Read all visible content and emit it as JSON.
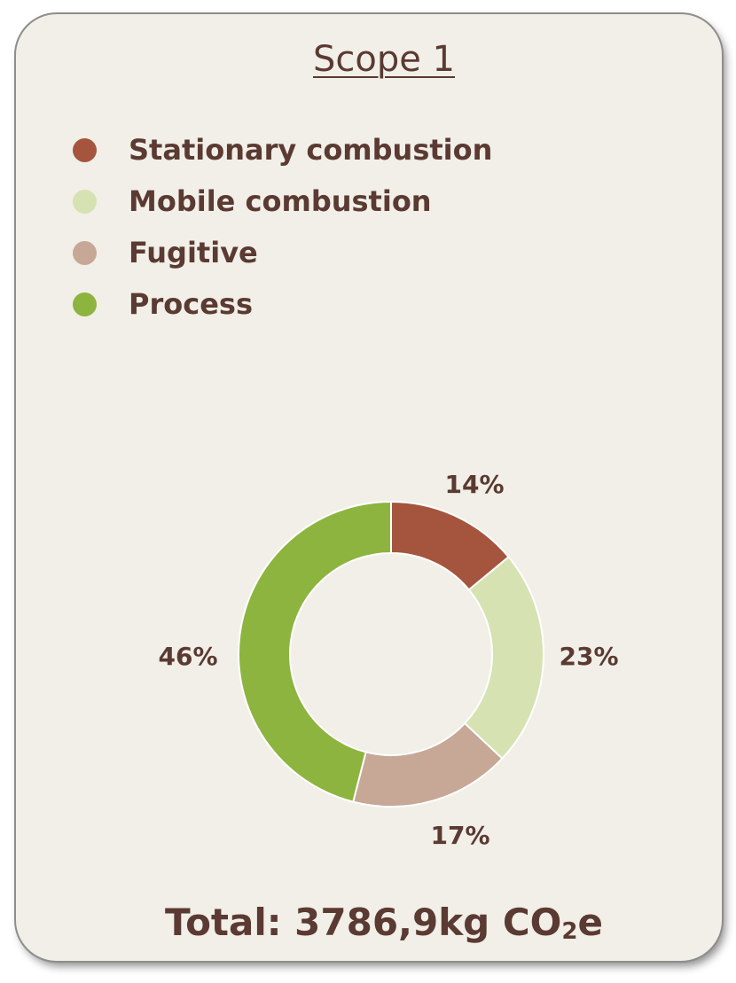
{
  "chart_data": {
    "type": "pie",
    "title": "Scope 1",
    "categories": [
      "Stationary combustion",
      "Mobile combustion",
      "Fugitive",
      "Process"
    ],
    "values": [
      14,
      23,
      17,
      46
    ],
    "value_labels": [
      "14%",
      "23%",
      "17%",
      "46%"
    ],
    "colors": [
      "#a5553e",
      "#d6e2b2",
      "#c7a796",
      "#8db43e"
    ],
    "style": "donut",
    "legend_position": "top-left"
  },
  "total": {
    "prefix": "Total: 3786,9kg CO",
    "subscript": "2",
    "suffix": "e"
  }
}
